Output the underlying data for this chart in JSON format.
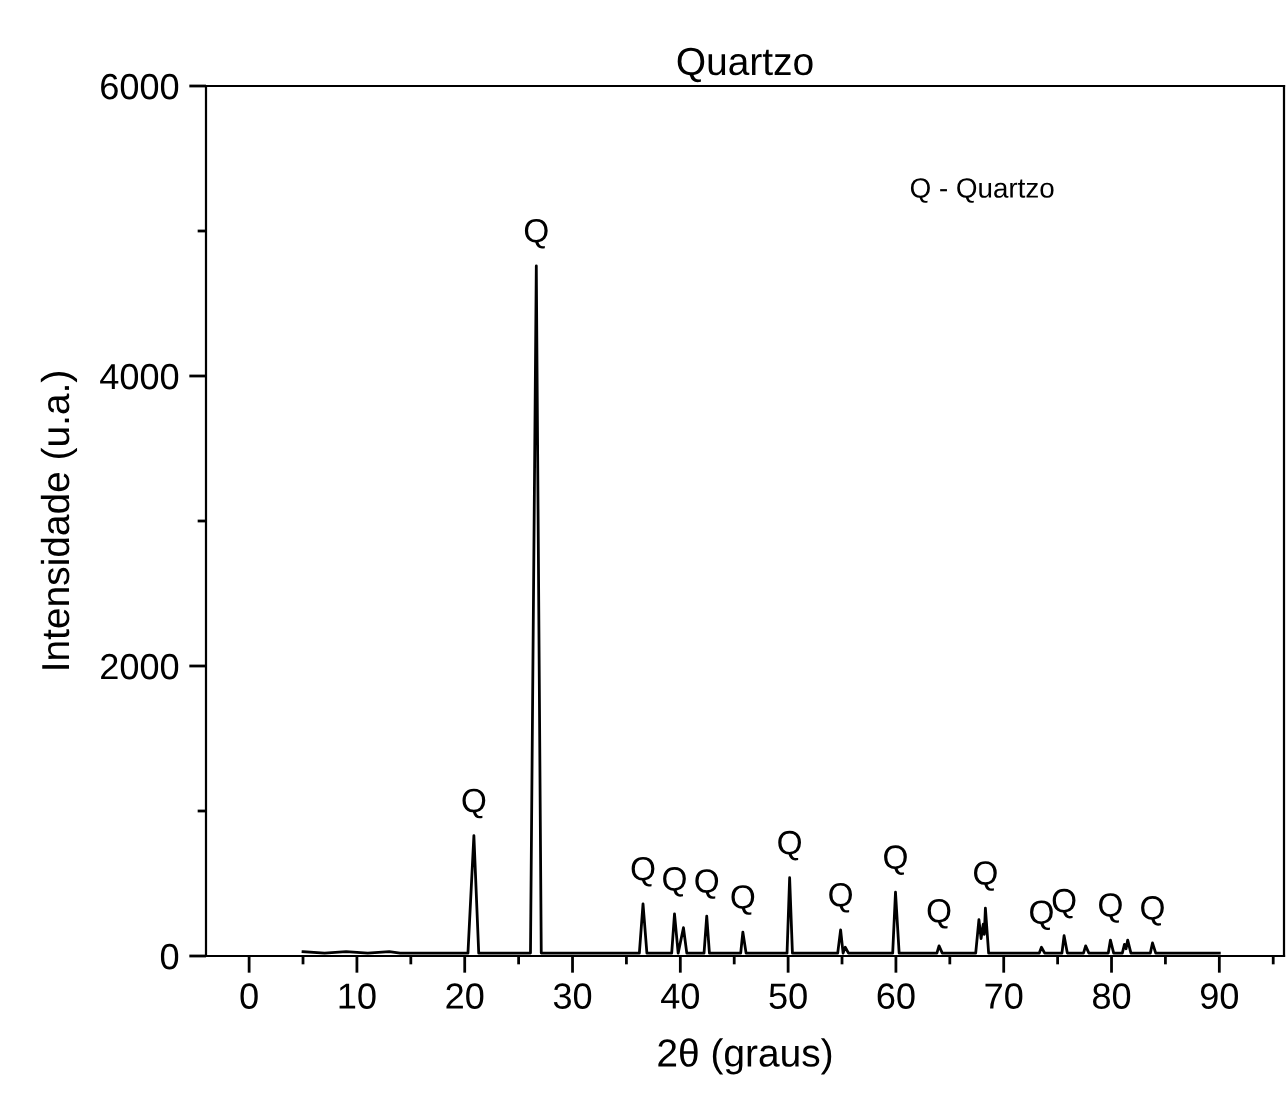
{
  "chart_data": {
    "type": "line",
    "title": "Quartzo",
    "xlabel": "2θ (graus)",
    "ylabel": "Intensidade (u.a.)",
    "xlim": [
      -4,
      96
    ],
    "ylim": [
      0,
      6000
    ],
    "xticks": [
      0,
      {
        "value": 5,
        "label": null
      },
      10,
      {
        "value": 15,
        "label": null
      },
      20,
      {
        "value": 25,
        "label": null
      },
      30,
      {
        "value": 35,
        "label": null
      },
      40,
      {
        "value": 45,
        "label": null
      },
      50,
      {
        "value": 55,
        "label": null
      },
      60,
      {
        "value": 65,
        "label": null
      },
      70,
      {
        "value": 75,
        "label": null
      },
      80,
      {
        "value": 85,
        "label": null
      },
      90,
      {
        "value": 95,
        "label": null
      }
    ],
    "yticks": [
      0,
      {
        "value": 1000,
        "label": null
      },
      2000,
      {
        "value": 3000,
        "label": null
      },
      4000,
      {
        "value": 5000,
        "label": null
      },
      6000
    ],
    "grid": false,
    "legend": false,
    "marker": "none",
    "line_style": "solid",
    "series": [
      {
        "color": "#000000",
        "x": [
          5,
          7,
          9,
          11,
          13,
          14,
          20.3,
          20.85,
          21.3,
          26.1,
          26.64,
          27.1,
          36.2,
          36.54,
          36.9,
          39.2,
          39.46,
          39.8,
          40.29,
          40.6,
          42.2,
          42.45,
          42.7,
          45.6,
          45.8,
          46.1,
          49.9,
          50.14,
          50.4,
          54.6,
          54.87,
          55.1,
          55.3,
          55.6,
          59.7,
          59.96,
          60.3,
          63.8,
          64.0,
          64.3,
          67.4,
          67.7,
          67.9,
          68.1,
          68.2,
          68.3,
          68.6,
          73.3,
          73.5,
          73.8,
          75.4,
          75.6,
          75.9,
          77.4,
          77.6,
          77.9,
          79.7,
          79.9,
          80.2,
          81.0,
          81.2,
          81.35,
          81.5,
          81.8,
          83.6,
          83.8,
          84.1,
          90
        ],
        "values": [
          30,
          20,
          30,
          20,
          30,
          20,
          20,
          830,
          20,
          20,
          4760,
          20,
          20,
          360,
          20,
          20,
          290,
          20,
          195,
          20,
          20,
          275,
          20,
          20,
          165,
          20,
          20,
          540,
          20,
          20,
          180,
          20,
          60,
          20,
          20,
          440,
          20,
          20,
          70,
          20,
          20,
          250,
          120,
          220,
          150,
          330,
          20,
          20,
          60,
          20,
          20,
          140,
          20,
          20,
          70,
          20,
          20,
          110,
          20,
          20,
          80,
          50,
          110,
          20,
          20,
          90,
          20,
          20
        ]
      }
    ],
    "annotations": [
      {
        "text": "Q",
        "x": 20.85,
        "y": 830
      },
      {
        "text": "Q",
        "x": 26.64,
        "y": 4760
      },
      {
        "text": "Q",
        "x": 36.54,
        "y": 360
      },
      {
        "text": "Q",
        "x": 39.46,
        "y": 290
      },
      {
        "text": "Q",
        "x": 42.45,
        "y": 275
      },
      {
        "text": "Q",
        "x": 45.8,
        "y": 165
      },
      {
        "text": "Q",
        "x": 50.14,
        "y": 540
      },
      {
        "text": "Q",
        "x": 54.87,
        "y": 180
      },
      {
        "text": "Q",
        "x": 59.96,
        "y": 440
      },
      {
        "text": "Q",
        "x": 64.0,
        "y": 70
      },
      {
        "text": "Q",
        "x": 68.3,
        "y": 330
      },
      {
        "text": "Q",
        "x": 73.5,
        "y": 60
      },
      {
        "text": "Q",
        "x": 75.6,
        "y": 140
      },
      {
        "text": "Q",
        "x": 79.9,
        "y": 110
      },
      {
        "text": "Q",
        "x": 83.8,
        "y": 90
      },
      "Q - Quartzo"
    ]
  }
}
